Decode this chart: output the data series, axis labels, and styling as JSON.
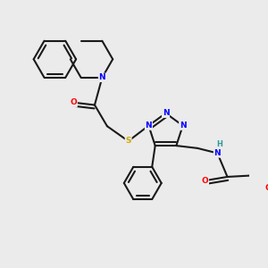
{
  "bg_color": "#ebebeb",
  "atom_colors": {
    "N": "#0000ff",
    "O": "#ff0000",
    "S": "#ccaa00",
    "C": "#1a1a1a",
    "H": "#339999"
  },
  "bond_color": "#1a1a1a",
  "lw": 1.5,
  "fs": 6.5,
  "dbl_off": 0.014
}
